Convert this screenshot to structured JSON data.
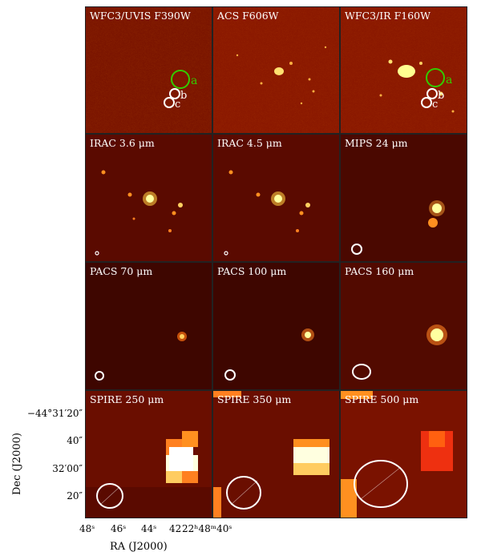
{
  "panels": [
    {
      "key": "p1",
      "label": "WFC3/UVIS F390W"
    },
    {
      "key": "p2",
      "label": "ACS F606W"
    },
    {
      "key": "p3",
      "label": "WFC3/IR F160W"
    },
    {
      "key": "p4",
      "label": "IRAC 3.6 μm"
    },
    {
      "key": "p5",
      "label": "IRAC 4.5 μm"
    },
    {
      "key": "p6",
      "label": "MIPS 24 μm"
    },
    {
      "key": "p7",
      "label": "PACS 70 μm"
    },
    {
      "key": "p8",
      "label": "PACS 100 μm"
    },
    {
      "key": "p9",
      "label": "PACS 160 μm"
    },
    {
      "key": "p10",
      "label": "SPIRE 250 μm"
    },
    {
      "key": "p11",
      "label": "SPIRE 350 μm"
    },
    {
      "key": "p12",
      "label": "SPIRE 500 μm"
    }
  ],
  "markers": {
    "a": "a",
    "b": "b",
    "c": "c"
  },
  "axes": {
    "ylabel": "Dec (J2000)",
    "xlabel": "RA (J2000)",
    "yticks": [
      "−44°31′20″",
      "40″",
      "32′00″",
      "20″"
    ],
    "xticks": [
      "48ˢ",
      "46ˢ",
      "44ˢ",
      "42",
      "22ʰ48ᵐ40ˢ"
    ]
  },
  "colors": {
    "background": "#6a0e00",
    "marker_green": "#33cc00",
    "marker_white": "#ffffff"
  }
}
